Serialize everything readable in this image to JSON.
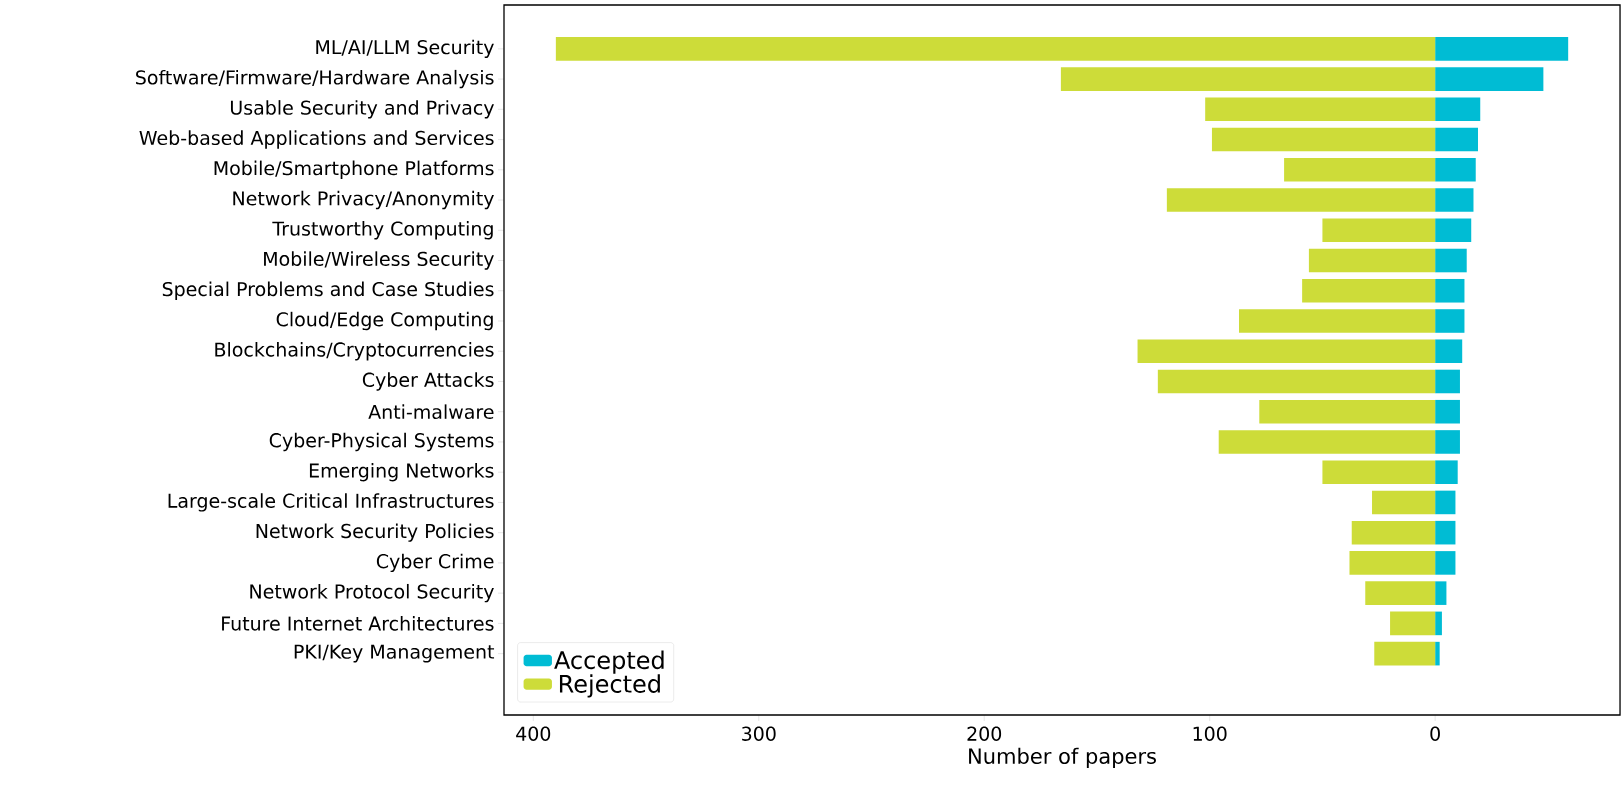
{
  "chart_data": {
    "type": "bar",
    "orientation": "horizontal",
    "xlabel": "Number of papers",
    "categories": [
      "ML/AI/LLM Security",
      "Software/Firmware/Hardware Analysis",
      "Usable Security and Privacy",
      "Web-based Applications and Services",
      "Mobile/Smartphone Platforms",
      "Network Privacy/Anonymity",
      "Trustworthy Computing",
      "Mobile/Wireless Security",
      "Special Problems and Case Studies",
      "Cloud/Edge Computing",
      "Blockchains/Cryptocurrencies",
      "Cyber Attacks",
      "Anti-malware",
      "Cyber-Physical Systems",
      "Emerging Networks",
      "Large-scale Critical Infrastructures",
      "Network Security Policies",
      "Cyber Crime",
      "Network Protocol Security",
      "Future Internet Architectures",
      "PKI/Key Management"
    ],
    "series": [
      {
        "name": "Accepted",
        "color": "#00bcd4",
        "values": [
          59,
          48,
          20,
          19,
          18,
          17,
          16,
          14,
          13,
          13,
          12,
          11,
          11,
          11,
          10,
          9,
          9,
          9,
          5,
          3,
          2
        ]
      },
      {
        "name": "Rejected",
        "color": "#cddc39",
        "values": [
          -390,
          -166,
          -102,
          -99,
          -67,
          -119,
          -50,
          -56,
          -59,
          -87,
          -132,
          -123,
          -78,
          -96,
          -50,
          -28,
          -37,
          -38,
          -31,
          -20,
          -27
        ]
      }
    ],
    "xlim": [
      -413,
      82
    ],
    "xticks": [
      {
        "value": -400,
        "label": "400"
      },
      {
        "value": -300,
        "label": "300"
      },
      {
        "value": -200,
        "label": "200"
      },
      {
        "value": -100,
        "label": "100"
      },
      0
    ],
    "stacked": true,
    "legend": "bottom left"
  }
}
